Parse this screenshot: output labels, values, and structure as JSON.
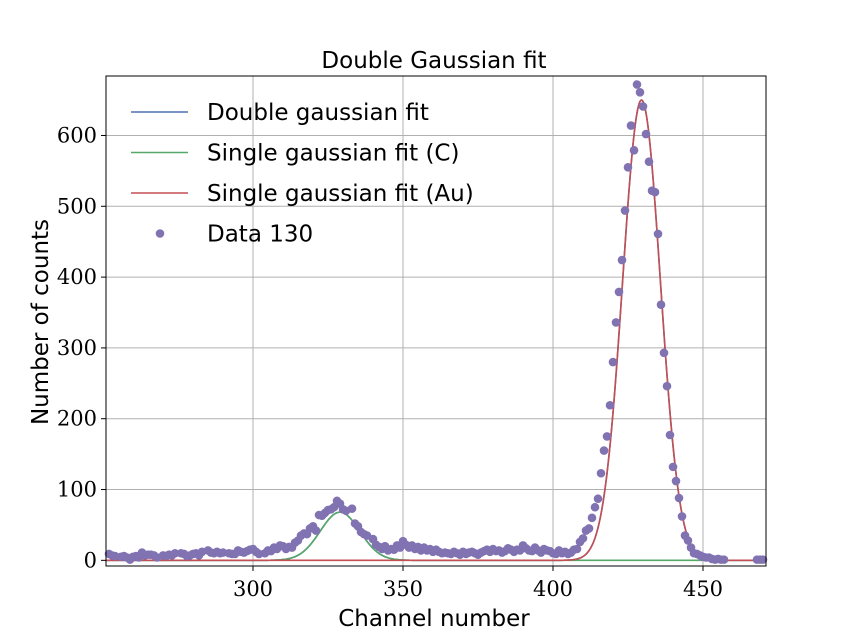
{
  "chart_data": {
    "type": "scatter",
    "title": "Double Gaussian fit",
    "xlabel": "Channel number",
    "ylabel": "Number of counts",
    "xlim": [
      251,
      471
    ],
    "ylim": [
      -8,
      684
    ],
    "xticks": [
      300,
      350,
      400,
      450
    ],
    "yticks": [
      0,
      100,
      200,
      300,
      400,
      500,
      600
    ],
    "grid": true,
    "legend_position": "upper-left",
    "series": [
      {
        "name": "Double gaussian fit",
        "kind": "line",
        "color": "#4c72b0",
        "model": {
          "c_amp": 68,
          "c_mu": 329,
          "c_sigma": 6.6,
          "au_amp": 650,
          "au_mu": 429.5,
          "au_sigma": 6.3
        }
      },
      {
        "name": "Single gaussian fit (C)",
        "kind": "line",
        "color": "#55a868",
        "model": {
          "amp": 68,
          "mu": 329,
          "sigma": 6.6
        }
      },
      {
        "name": "Single gaussian fit (Au)",
        "kind": "line",
        "color": "#c44e52",
        "model": {
          "amp": 650,
          "mu": 429.5,
          "sigma": 6.3
        }
      },
      {
        "name": "Data 130",
        "kind": "scatter",
        "color": "#8172b2",
        "points": [
          [
            252,
            9
          ],
          [
            253,
            7
          ],
          [
            254,
            6
          ],
          [
            256,
            5
          ],
          [
            257,
            6
          ],
          [
            258,
            4
          ],
          [
            259,
            1
          ],
          [
            260,
            5
          ],
          [
            261,
            6
          ],
          [
            262,
            4
          ],
          [
            263,
            11
          ],
          [
            264,
            7
          ],
          [
            265,
            8
          ],
          [
            266,
            8
          ],
          [
            267,
            7
          ],
          [
            268,
            4
          ],
          [
            270,
            7
          ],
          [
            271,
            6
          ],
          [
            272,
            8
          ],
          [
            273,
            7
          ],
          [
            274,
            10
          ],
          [
            276,
            10
          ],
          [
            277,
            9
          ],
          [
            278,
            6
          ],
          [
            279,
            7
          ],
          [
            280,
            9
          ],
          [
            281,
            10
          ],
          [
            282,
            7
          ],
          [
            283,
            12
          ],
          [
            285,
            14
          ],
          [
            286,
            11
          ],
          [
            287,
            10
          ],
          [
            288,
            12
          ],
          [
            289,
            10
          ],
          [
            290,
            11
          ],
          [
            292,
            10
          ],
          [
            293,
            9
          ],
          [
            294,
            9
          ],
          [
            295,
            14
          ],
          [
            296,
            12
          ],
          [
            297,
            11
          ],
          [
            298,
            13
          ],
          [
            299,
            15
          ],
          [
            300,
            16
          ],
          [
            301,
            12
          ],
          [
            302,
            9
          ],
          [
            304,
            10
          ],
          [
            305,
            14
          ],
          [
            306,
            13
          ],
          [
            307,
            18
          ],
          [
            308,
            16
          ],
          [
            309,
            21
          ],
          [
            310,
            20
          ],
          [
            311,
            16
          ],
          [
            312,
            19
          ],
          [
            313,
            18
          ],
          [
            314,
            25
          ],
          [
            315,
            28
          ],
          [
            316,
            35
          ],
          [
            317,
            38
          ],
          [
            318,
            37
          ],
          [
            319,
            45
          ],
          [
            320,
            48
          ],
          [
            321,
            42
          ],
          [
            322,
            64
          ],
          [
            323,
            63
          ],
          [
            324,
            67
          ],
          [
            325,
            71
          ],
          [
            326,
            72
          ],
          [
            327,
            75
          ],
          [
            328,
            84
          ],
          [
            329,
            80
          ],
          [
            330,
            72
          ],
          [
            331,
            70
          ],
          [
            333,
            73
          ],
          [
            334,
            52
          ],
          [
            335,
            48
          ],
          [
            336,
            40
          ],
          [
            337,
            37
          ],
          [
            338,
            35
          ],
          [
            340,
            30
          ],
          [
            341,
            22
          ],
          [
            342,
            19
          ],
          [
            343,
            16
          ],
          [
            344,
            20
          ],
          [
            345,
            14
          ],
          [
            346,
            16
          ],
          [
            347,
            15
          ],
          [
            348,
            21
          ],
          [
            349,
            18
          ],
          [
            350,
            27
          ],
          [
            351,
            22
          ],
          [
            352,
            18
          ],
          [
            353,
            21
          ],
          [
            354,
            16
          ],
          [
            355,
            19
          ],
          [
            356,
            14
          ],
          [
            357,
            18
          ],
          [
            358,
            14
          ],
          [
            359,
            16
          ],
          [
            360,
            12
          ],
          [
            361,
            15
          ],
          [
            362,
            12
          ],
          [
            363,
            10
          ],
          [
            364,
            11
          ],
          [
            365,
            10
          ],
          [
            366,
            9
          ],
          [
            367,
            12
          ],
          [
            368,
            10
          ],
          [
            369,
            8
          ],
          [
            370,
            12
          ],
          [
            371,
            9
          ],
          [
            372,
            11
          ],
          [
            373,
            12
          ],
          [
            374,
            10
          ],
          [
            375,
            8
          ],
          [
            376,
            11
          ],
          [
            377,
            13
          ],
          [
            378,
            15
          ],
          [
            379,
            12
          ],
          [
            380,
            16
          ],
          [
            381,
            13
          ],
          [
            382,
            14
          ],
          [
            383,
            11
          ],
          [
            384,
            13
          ],
          [
            385,
            17
          ],
          [
            386,
            15
          ],
          [
            387,
            12
          ],
          [
            388,
            15
          ],
          [
            389,
            14
          ],
          [
            390,
            21
          ],
          [
            391,
            17
          ],
          [
            392,
            14
          ],
          [
            393,
            13
          ],
          [
            394,
            18
          ],
          [
            395,
            14
          ],
          [
            396,
            11
          ],
          [
            397,
            16
          ],
          [
            398,
            14
          ],
          [
            399,
            13
          ],
          [
            400,
            10
          ],
          [
            401,
            9
          ],
          [
            402,
            14
          ],
          [
            403,
            10
          ],
          [
            404,
            12
          ],
          [
            405,
            9
          ],
          [
            406,
            11
          ],
          [
            407,
            15
          ],
          [
            408,
            16
          ],
          [
            409,
            26
          ],
          [
            410,
            31
          ],
          [
            411,
            42
          ],
          [
            412,
            45
          ],
          [
            413,
            60
          ],
          [
            414,
            75
          ],
          [
            415,
            87
          ],
          [
            416,
            123
          ],
          [
            417,
            155
          ],
          [
            418,
            175
          ],
          [
            419,
            219
          ],
          [
            420,
            280
          ],
          [
            421,
            336
          ],
          [
            422,
            379
          ],
          [
            423,
            424
          ],
          [
            424,
            494
          ],
          [
            425,
            555
          ],
          [
            426,
            614
          ],
          [
            427,
            579
          ],
          [
            428,
            672
          ],
          [
            429,
            661
          ],
          [
            430,
            641
          ],
          [
            431,
            602
          ],
          [
            432,
            563
          ],
          [
            433,
            522
          ],
          [
            434,
            520
          ],
          [
            435,
            461
          ],
          [
            436,
            361
          ],
          [
            437,
            293
          ],
          [
            438,
            246
          ],
          [
            439,
            177
          ],
          [
            440,
            132
          ],
          [
            441,
            112
          ],
          [
            442,
            88
          ],
          [
            443,
            62
          ],
          [
            444,
            35
          ],
          [
            445,
            28
          ],
          [
            446,
            18
          ],
          [
            447,
            10
          ],
          [
            448,
            9
          ],
          [
            449,
            7
          ],
          [
            450,
            5
          ],
          [
            451,
            4
          ],
          [
            452,
            4
          ],
          [
            453,
            2
          ],
          [
            454,
            1
          ],
          [
            455,
            2
          ],
          [
            456,
            1
          ],
          [
            457,
            1
          ],
          [
            468,
            1
          ],
          [
            469,
            1
          ],
          [
            470,
            1
          ]
        ]
      }
    ]
  }
}
